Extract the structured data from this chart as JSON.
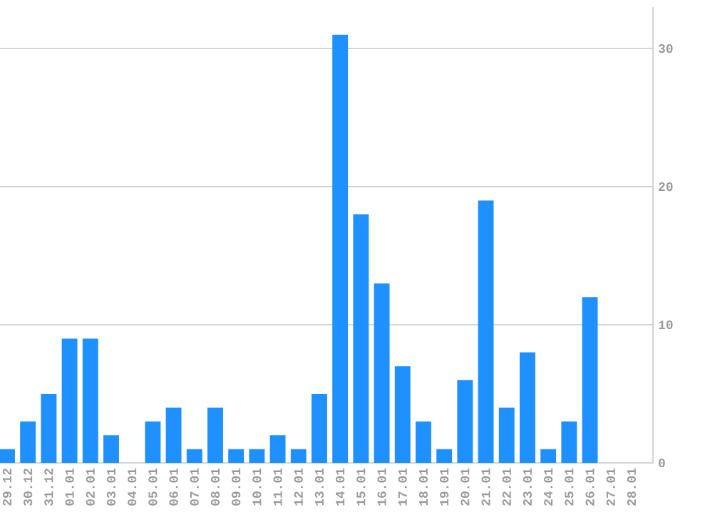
{
  "chart_data": {
    "type": "bar",
    "categories": [
      "29.12",
      "30.12",
      "31.12",
      "01.01",
      "02.01",
      "03.01",
      "04.01",
      "05.01",
      "06.01",
      "07.01",
      "08.01",
      "09.01",
      "10.01",
      "11.01",
      "12.01",
      "13.01",
      "14.01",
      "15.01",
      "16.01",
      "17.01",
      "18.01",
      "19.01",
      "20.01",
      "21.01",
      "22.01",
      "23.01",
      "24.01",
      "25.01",
      "26.01",
      "27.01",
      "28.01"
    ],
    "values": [
      1,
      3,
      5,
      9,
      9,
      2,
      0,
      3,
      4,
      1,
      4,
      1,
      1,
      2,
      1,
      5,
      31,
      18,
      13,
      7,
      3,
      1,
      6,
      19,
      4,
      8,
      1,
      3,
      12,
      0,
      0
    ],
    "color": "#1e90ff",
    "ylim": [
      0,
      33
    ],
    "yticks": [
      0,
      10,
      20,
      30
    ],
    "grid": "y"
  }
}
